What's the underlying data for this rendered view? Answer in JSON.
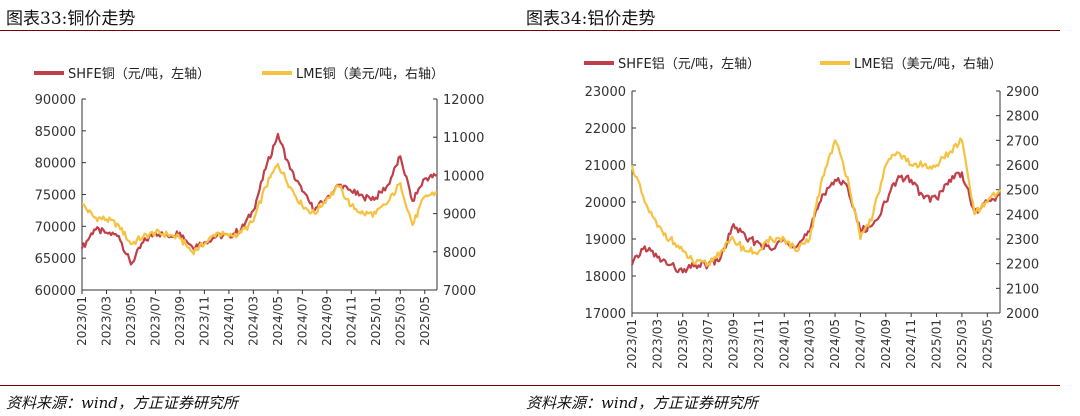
{
  "panels": [
    {
      "title": "图表33:铜价走势",
      "source": "资料来源：wind，方正证券研究所"
    },
    {
      "title": "图表34:铝价走势",
      "source": "资料来源：wind，方正证券研究所"
    }
  ],
  "chart_data": [
    {
      "type": "line",
      "title": "",
      "x_tick_labels": [
        "2023/01",
        "2023/03",
        "2023/05",
        "2023/07",
        "2023/09",
        "2023/11",
        "2024/01",
        "2024/03",
        "2024/05",
        "2024/07",
        "2024/09",
        "2024/11",
        "2025/01",
        "2025/03",
        "2025/05"
      ],
      "x_range": [
        "2023/01",
        "2025/06"
      ],
      "ylim_left": [
        60000,
        90000
      ],
      "yticks_left": [
        60000,
        65000,
        70000,
        75000,
        80000,
        85000,
        90000
      ],
      "ylim_right": [
        7000,
        12000
      ],
      "yticks_right": [
        7000,
        8000,
        9000,
        10000,
        11000,
        12000
      ],
      "legend_position": "top-left",
      "grid": false,
      "series": [
        {
          "name": "SHFE铜（元/吨，左轴）",
          "axis": "left",
          "color": "#c0404a",
          "x": [
            "2023/01",
            "2023/02",
            "2023/03",
            "2023/04",
            "2023/05",
            "2023/06",
            "2023/07",
            "2023/08",
            "2023/09",
            "2023/10",
            "2023/11",
            "2023/12",
            "2024/01",
            "2024/02",
            "2024/03",
            "2024/04",
            "2024/05",
            "2024/06",
            "2024/07",
            "2024/08",
            "2024/09",
            "2024/10",
            "2024/11",
            "2024/12",
            "2025/01",
            "2025/02",
            "2025/03",
            "2025/04",
            "2025/05",
            "2025/06"
          ],
          "values": [
            66500,
            69500,
            69000,
            68500,
            64000,
            67500,
            69000,
            68500,
            69000,
            66800,
            67500,
            68500,
            68500,
            69500,
            72500,
            79000,
            84500,
            79000,
            75500,
            72500,
            74500,
            76500,
            75500,
            74500,
            74500,
            76500,
            81000,
            74000,
            77500,
            78000
          ]
        },
        {
          "name": "LME铜（美元/吨，右轴）",
          "axis": "right",
          "color": "#f5c242",
          "x": [
            "2023/01",
            "2023/02",
            "2023/03",
            "2023/04",
            "2023/05",
            "2023/06",
            "2023/07",
            "2023/08",
            "2023/09",
            "2023/10",
            "2023/11",
            "2023/12",
            "2024/01",
            "2024/02",
            "2024/03",
            "2024/04",
            "2024/05",
            "2024/06",
            "2024/07",
            "2024/08",
            "2024/09",
            "2024/10",
            "2024/11",
            "2024/12",
            "2025/01",
            "2025/02",
            "2025/03",
            "2025/04",
            "2025/05",
            "2025/06"
          ],
          "values": [
            9250,
            8900,
            8850,
            8700,
            8200,
            8400,
            8500,
            8450,
            8350,
            8000,
            8200,
            8500,
            8400,
            8500,
            8800,
            9700,
            10300,
            9700,
            9200,
            9000,
            9400,
            9700,
            9200,
            9000,
            9000,
            9300,
            9800,
            8700,
            9450,
            9550
          ]
        }
      ]
    },
    {
      "type": "line",
      "title": "",
      "x_tick_labels": [
        "2023/01",
        "2023/03",
        "2023/05",
        "2023/07",
        "2023/09",
        "2023/11",
        "2024/01",
        "2024/03",
        "2024/05",
        "2024/07",
        "2024/09",
        "2024/11",
        "2025/01",
        "2025/03",
        "2025/05"
      ],
      "x_range": [
        "2023/01",
        "2025/06"
      ],
      "ylim_left": [
        17000,
        23000
      ],
      "yticks_left": [
        17000,
        18000,
        19000,
        20000,
        21000,
        22000,
        23000
      ],
      "ylim_right": [
        2000,
        2900
      ],
      "yticks_right": [
        2000,
        2100,
        2200,
        2300,
        2400,
        2500,
        2600,
        2700,
        2800,
        2900
      ],
      "legend_position": "top",
      "grid": false,
      "series": [
        {
          "name": "SHFE铝（元/吨，左轴）",
          "axis": "left",
          "color": "#c0404a",
          "x": [
            "2023/01",
            "2023/02",
            "2023/03",
            "2023/04",
            "2023/05",
            "2023/06",
            "2023/07",
            "2023/08",
            "2023/09",
            "2023/10",
            "2023/11",
            "2023/12",
            "2024/01",
            "2024/02",
            "2024/03",
            "2024/04",
            "2024/05",
            "2024/06",
            "2024/07",
            "2024/08",
            "2024/09",
            "2024/10",
            "2024/11",
            "2024/12",
            "2025/01",
            "2025/02",
            "2025/03",
            "2025/04",
            "2025/05",
            "2025/06"
          ],
          "values": [
            18300,
            18800,
            18500,
            18300,
            18100,
            18300,
            18300,
            18500,
            19400,
            19000,
            18900,
            18700,
            19000,
            18800,
            19200,
            20200,
            20600,
            20400,
            19200,
            19400,
            20000,
            20700,
            20600,
            20100,
            20100,
            20600,
            20800,
            19700,
            20000,
            20200
          ]
        },
        {
          "name": "LME铝（美元/吨，右轴）",
          "axis": "right",
          "color": "#f5c242",
          "x": [
            "2023/01",
            "2023/02",
            "2023/03",
            "2023/04",
            "2023/05",
            "2023/06",
            "2023/07",
            "2023/08",
            "2023/09",
            "2023/10",
            "2023/11",
            "2023/12",
            "2024/01",
            "2024/02",
            "2024/03",
            "2024/04",
            "2024/05",
            "2024/06",
            "2024/07",
            "2024/08",
            "2024/09",
            "2024/10",
            "2024/11",
            "2024/12",
            "2025/01",
            "2025/02",
            "2025/03",
            "2025/04",
            "2025/05",
            "2025/06"
          ],
          "values": [
            2600,
            2450,
            2350,
            2300,
            2250,
            2200,
            2200,
            2250,
            2300,
            2250,
            2250,
            2300,
            2300,
            2250,
            2300,
            2550,
            2700,
            2550,
            2300,
            2400,
            2600,
            2650,
            2600,
            2600,
            2600,
            2650,
            2700,
            2400,
            2450,
            2500
          ]
        }
      ]
    }
  ]
}
